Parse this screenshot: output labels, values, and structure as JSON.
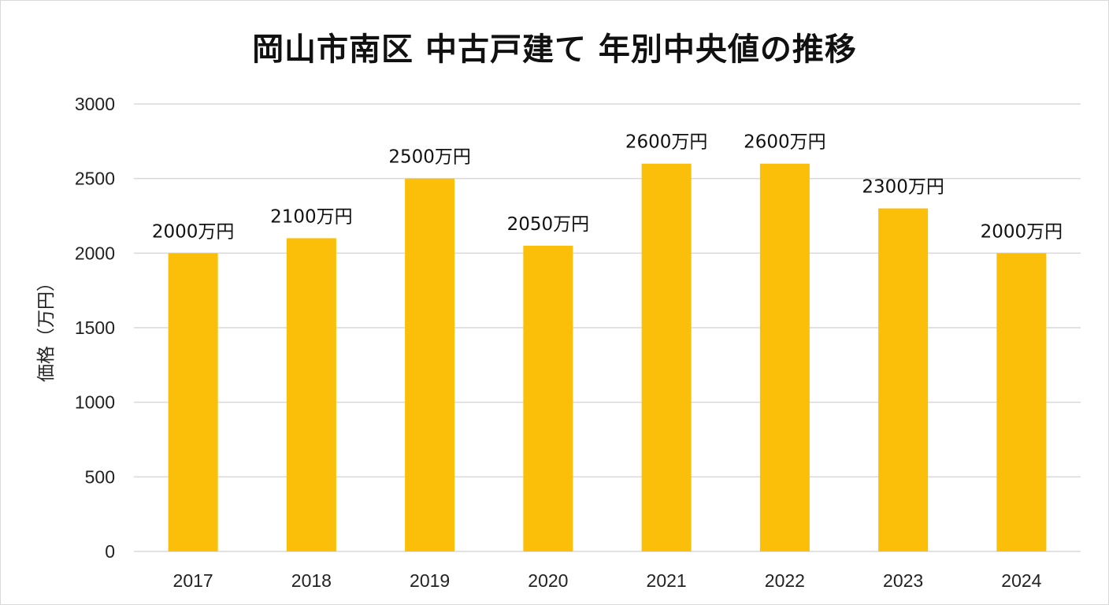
{
  "chart_data": {
    "type": "bar",
    "title": "岡山市南区 中古戸建て 年別中央値の推移",
    "ylabel": "価格（万円）",
    "xlabel": "",
    "categories": [
      "2017",
      "2018",
      "2019",
      "2020",
      "2021",
      "2022",
      "2023",
      "2024"
    ],
    "values": [
      2000,
      2100,
      2500,
      2050,
      2600,
      2600,
      2300,
      2000
    ],
    "data_labels": [
      "2000万円",
      "2100万円",
      "2500万円",
      "2050万円",
      "2600万円",
      "2600万円",
      "2300万円",
      "2000万円"
    ],
    "ylim": [
      0,
      3000
    ],
    "yticks": [
      "0",
      "500",
      "1000",
      "1500",
      "2000",
      "2500",
      "3000"
    ],
    "grid": true,
    "bar_color": "#FBBF0A",
    "grid_color": "#d9d9d9"
  }
}
